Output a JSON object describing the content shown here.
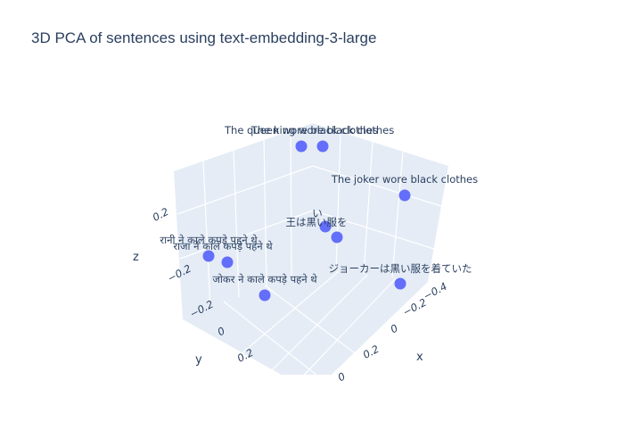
{
  "chart_data": {
    "type": "scatter",
    "title": "3D PCA of sentences using text-embedding-3-large",
    "axes": {
      "x": {
        "label": "x",
        "ticks": [
          "−0.4",
          "−0.2",
          "0",
          "0.2",
          "0"
        ]
      },
      "y": {
        "label": "y",
        "ticks": [
          "−0.2",
          "0",
          "0.2"
        ]
      },
      "z": {
        "label": "z",
        "ticks": [
          "0.2",
          "−0.2"
        ]
      }
    },
    "marker_color": "#636efa",
    "points": [
      {
        "label": "The queen wore black clothes"
      },
      {
        "label": "The king wore black clothes"
      },
      {
        "label": "The joker wore black clothes"
      },
      {
        "label": "王は黒い服を"
      },
      {
        "label": "い"
      },
      {
        "label": "ジョーカーは黒い服を着ていた"
      },
      {
        "label": "रानी ने काले कपड़े पहने थे"
      },
      {
        "label": "राजा ने काले कपड़े पहने थे"
      },
      {
        "label": "जोकर ने काले कपड़े पहने थे"
      }
    ]
  }
}
